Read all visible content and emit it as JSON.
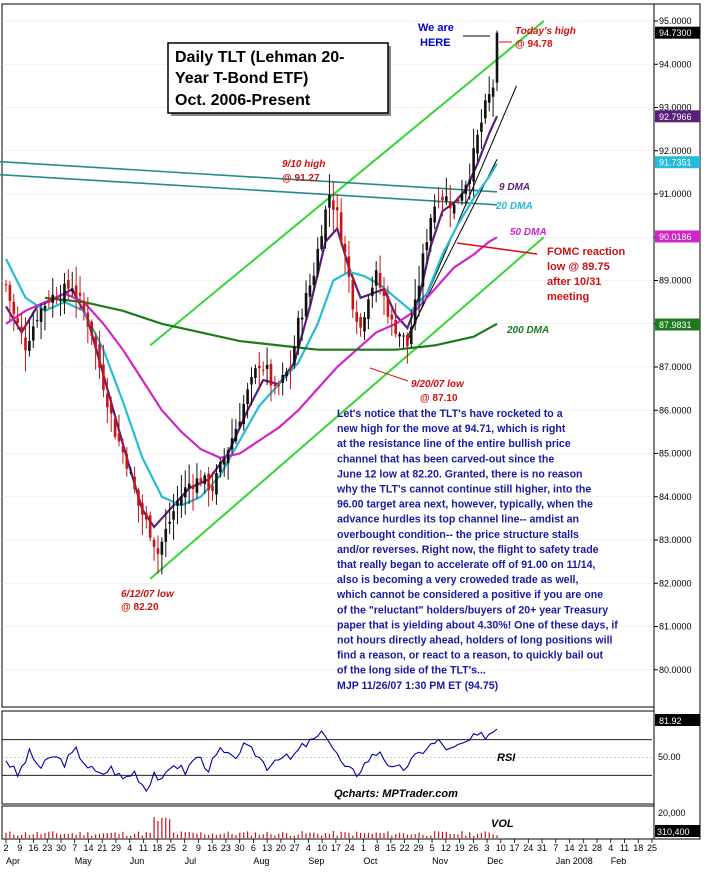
{
  "chart_data": {
    "type": "candlestick",
    "title_lines": [
      "Daily TLT (Lehman 20-",
      "Year T-Bond ETF)",
      "Oct. 2006-Present"
    ],
    "ylim": [
      79.5,
      95.1
    ],
    "y_ticks": [
      "95.0000",
      "94.0000",
      "93.0000",
      "92.0000",
      "91.0000",
      "90.0000",
      "89.0000",
      "88.0000",
      "87.0000",
      "86.0000",
      "85.0000",
      "84.0000",
      "83.0000",
      "82.0000",
      "81.0000",
      "80.0000"
    ],
    "price_tags": [
      {
        "label": "94.7300",
        "value": 94.73,
        "color": "#000000"
      },
      {
        "label": "92.7966",
        "value": 92.7966,
        "color": "#5a1f7a"
      },
      {
        "label": "91.7351",
        "value": 91.7351,
        "color": "#26bcd8"
      },
      {
        "label": "90.0186",
        "value": 90.0186,
        "color": "#d026c8"
      },
      {
        "label": "87.9831",
        "value": 87.9831,
        "color": "#1e7a1e"
      }
    ],
    "x_day_labels": [
      "2",
      "9",
      "16",
      "23",
      "30",
      "7",
      "14",
      "21",
      "29",
      "4",
      "11",
      "18",
      "25",
      "2",
      "9",
      "16",
      "23",
      "30",
      "6",
      "13",
      "20",
      "27",
      "4",
      "10",
      "17",
      "24",
      "1",
      "8",
      "15",
      "22",
      "29",
      "5",
      "12",
      "19",
      "26",
      "3",
      "10",
      "17",
      "24",
      "31",
      "7",
      "14",
      "21",
      "28",
      "4",
      "11",
      "18",
      "25"
    ],
    "x_month_labels": [
      "Apr",
      "May",
      "Jun",
      "Jul",
      "Aug",
      "Sep",
      "Oct",
      "Nov",
      "Dec",
      "Jan 2008",
      "Feb"
    ],
    "ohlc_anchors": [
      {
        "t": 0,
        "v": 88.9
      },
      {
        "t": 2,
        "v": 88.2
      },
      {
        "t": 5,
        "v": 87.5
      },
      {
        "t": 8,
        "v": 88.2
      },
      {
        "t": 11,
        "v": 88.6
      },
      {
        "t": 14,
        "v": 88.7
      },
      {
        "t": 17,
        "v": 88.9
      },
      {
        "t": 19,
        "v": 88.5
      },
      {
        "t": 22,
        "v": 87.8
      },
      {
        "t": 25,
        "v": 86.6
      },
      {
        "t": 28,
        "v": 85.5
      },
      {
        "t": 31,
        "v": 84.8
      },
      {
        "t": 34,
        "v": 83.8
      },
      {
        "t": 37,
        "v": 83.2
      },
      {
        "t": 39,
        "v": 82.7
      },
      {
        "t": 41,
        "v": 83.2
      },
      {
        "t": 44,
        "v": 83.9
      },
      {
        "t": 47,
        "v": 84.3
      },
      {
        "t": 50,
        "v": 84.4
      },
      {
        "t": 53,
        "v": 84.2
      },
      {
        "t": 56,
        "v": 84.9
      },
      {
        "t": 59,
        "v": 85.6
      },
      {
        "t": 62,
        "v": 86.4
      },
      {
        "t": 65,
        "v": 87.1
      },
      {
        "t": 67,
        "v": 86.9
      },
      {
        "t": 69,
        "v": 86.4
      },
      {
        "t": 71,
        "v": 86.7
      },
      {
        "t": 73,
        "v": 87.0
      },
      {
        "t": 75,
        "v": 88.0
      },
      {
        "t": 77,
        "v": 88.6
      },
      {
        "t": 79,
        "v": 89.2
      },
      {
        "t": 81,
        "v": 90.2
      },
      {
        "t": 83,
        "v": 91.0
      },
      {
        "t": 85,
        "v": 90.5
      },
      {
        "t": 87,
        "v": 89.6
      },
      {
        "t": 89,
        "v": 88.5
      },
      {
        "t": 91,
        "v": 87.9
      },
      {
        "t": 93,
        "v": 88.7
      },
      {
        "t": 95,
        "v": 89.1
      },
      {
        "t": 97,
        "v": 88.6
      },
      {
        "t": 99,
        "v": 88.0
      },
      {
        "t": 101,
        "v": 87.8
      },
      {
        "t": 103,
        "v": 87.5
      },
      {
        "t": 105,
        "v": 88.4
      },
      {
        "t": 107,
        "v": 89.5
      },
      {
        "t": 109,
        "v": 90.5
      },
      {
        "t": 111,
        "v": 91.0
      },
      {
        "t": 113,
        "v": 90.9
      },
      {
        "t": 115,
        "v": 90.7
      },
      {
        "t": 117,
        "v": 91.1
      },
      {
        "t": 119,
        "v": 91.5
      },
      {
        "t": 121,
        "v": 92.3
      },
      {
        "t": 123,
        "v": 93.0
      },
      {
        "t": 125,
        "v": 93.5
      },
      {
        "t": 126,
        "v": 94.73
      }
    ],
    "moving_averages": [
      {
        "name": "9 DMA",
        "color": "#5a1f7a",
        "points": [
          [
            0,
            88.4
          ],
          [
            4,
            87.8
          ],
          [
            8,
            88.4
          ],
          [
            13,
            88.6
          ],
          [
            17,
            88.8
          ],
          [
            21,
            88.1
          ],
          [
            26,
            86.5
          ],
          [
            31,
            84.9
          ],
          [
            35,
            83.7
          ],
          [
            38,
            83.3
          ],
          [
            42,
            83.7
          ],
          [
            47,
            84.2
          ],
          [
            52,
            84.4
          ],
          [
            57,
            85.0
          ],
          [
            62,
            86.0
          ],
          [
            66,
            86.7
          ],
          [
            70,
            86.6
          ],
          [
            74,
            87.1
          ],
          [
            78,
            88.4
          ],
          [
            82,
            89.9
          ],
          [
            85,
            90.2
          ],
          [
            88,
            89.3
          ],
          [
            91,
            88.6
          ],
          [
            94,
            88.7
          ],
          [
            97,
            88.8
          ],
          [
            100,
            88.2
          ],
          [
            103,
            87.9
          ],
          [
            106,
            88.6
          ],
          [
            109,
            89.8
          ],
          [
            112,
            90.6
          ],
          [
            115,
            90.8
          ],
          [
            118,
            91.1
          ],
          [
            121,
            91.7
          ],
          [
            124,
            92.4
          ],
          [
            126,
            92.8
          ]
        ]
      },
      {
        "name": "20 DMA",
        "color": "#26bcd8",
        "points": [
          [
            0,
            89.5
          ],
          [
            5,
            88.6
          ],
          [
            10,
            88.3
          ],
          [
            15,
            88.5
          ],
          [
            20,
            88.3
          ],
          [
            25,
            87.4
          ],
          [
            30,
            86.2
          ],
          [
            35,
            84.9
          ],
          [
            40,
            84.0
          ],
          [
            45,
            83.8
          ],
          [
            50,
            84.0
          ],
          [
            55,
            84.5
          ],
          [
            60,
            85.3
          ],
          [
            65,
            86.1
          ],
          [
            70,
            86.6
          ],
          [
            75,
            87.1
          ],
          [
            80,
            88.0
          ],
          [
            84,
            89.0
          ],
          [
            88,
            89.2
          ],
          [
            92,
            89.1
          ],
          [
            96,
            88.9
          ],
          [
            100,
            88.6
          ],
          [
            104,
            88.3
          ],
          [
            108,
            88.7
          ],
          [
            112,
            89.6
          ],
          [
            116,
            90.3
          ],
          [
            120,
            90.9
          ],
          [
            124,
            91.4
          ],
          [
            126,
            91.7
          ]
        ]
      },
      {
        "name": "50 DMA",
        "color": "#d026c8",
        "points": [
          [
            0,
            88.0
          ],
          [
            5,
            88.3
          ],
          [
            10,
            88.5
          ],
          [
            15,
            88.7
          ],
          [
            20,
            88.5
          ],
          [
            25,
            88.0
          ],
          [
            30,
            87.4
          ],
          [
            35,
            86.7
          ],
          [
            40,
            86.0
          ],
          [
            45,
            85.5
          ],
          [
            50,
            85.1
          ],
          [
            55,
            84.9
          ],
          [
            60,
            85.0
          ],
          [
            65,
            85.3
          ],
          [
            70,
            85.6
          ],
          [
            75,
            86.0
          ],
          [
            80,
            86.5
          ],
          [
            85,
            87.0
          ],
          [
            90,
            87.4
          ],
          [
            95,
            87.8
          ],
          [
            100,
            88.0
          ],
          [
            105,
            88.3
          ],
          [
            110,
            88.8
          ],
          [
            115,
            89.3
          ],
          [
            120,
            89.6
          ],
          [
            124,
            89.9
          ],
          [
            126,
            90.0
          ]
        ]
      },
      {
        "name": "200 DMA",
        "color": "#1e7a1e",
        "points": [
          [
            10,
            88.6
          ],
          [
            20,
            88.5
          ],
          [
            30,
            88.3
          ],
          [
            40,
            88.0
          ],
          [
            50,
            87.8
          ],
          [
            60,
            87.6
          ],
          [
            70,
            87.5
          ],
          [
            80,
            87.4
          ],
          [
            90,
            87.4
          ],
          [
            100,
            87.4
          ],
          [
            110,
            87.5
          ],
          [
            120,
            87.7
          ],
          [
            126,
            88.0
          ]
        ]
      }
    ],
    "annotations": [
      {
        "text": [
          "We are",
          "HERE"
        ],
        "color": "#0000cc"
      },
      {
        "text": [
          "Today's high",
          "@ 94.78"
        ],
        "color": "#d01010"
      },
      {
        "text": [
          "9/10 high",
          "@ 91.27"
        ],
        "color": "#d01010"
      },
      {
        "text": [
          "9 DMA"
        ],
        "color": "#5a1f7a"
      },
      {
        "text": [
          "20 DMA"
        ],
        "color": "#26bcd8"
      },
      {
        "text": [
          "50 DMA"
        ],
        "color": "#d026c8"
      },
      {
        "text": [
          "FOMC reaction",
          "low @ 89.75",
          "after 10/31",
          "meeting"
        ],
        "color": "#d01010"
      },
      {
        "text": [
          "200 DMA"
        ],
        "color": "#1e7a1e"
      },
      {
        "text": [
          "9/20/07 low",
          "@ 87.10"
        ],
        "color": "#d01010"
      },
      {
        "text": [
          "6/12/07 low",
          "@ 82.20"
        ],
        "color": "#d01010"
      }
    ],
    "commentary": [
      "Let's notice that the TLT's have rocketed to a",
      "new high for the move at 94.71, which is right",
      "at the resistance line of the entire bullish price",
      "channel that has been carved-out since the",
      "June 12 low at 82.20. Granted, there is no reason",
      "why the TLT's cannot continue still higher, into the",
      "96.00 target area next, however, typically, when the",
      "advance hurdles its top channel line-- amdist an",
      "overbought condition-- the price structure stalls",
      "and/or reverses. Right now, the flight to safety trade",
      "that really began to accelerate off of 91.00 on 11/14,",
      "also is becoming a very croweded trade as well,",
      "which cannot be considered a positive if you are one",
      "of the \"reluctant\" holders/buyers of 20+ year Treasury",
      "paper that is yielding about 4.30%! One of these days, if",
      "not hours directly ahead, holders of long positions will",
      "find a reason, or react to a reason, to quickly bail out",
      "of the long side of the TLT's...",
      "MJP 11/26/07 1:30 PM ET  (94.75)"
    ],
    "rsi_panel": {
      "label": "RSI",
      "credit": "Qcharts: MPTrader.com",
      "ticks": [
        "50.00"
      ],
      "current_tag": "81.92",
      "ylim": [
        0,
        100
      ],
      "levels": [
        70,
        30
      ],
      "anchors": [
        [
          0,
          48
        ],
        [
          3,
          30
        ],
        [
          6,
          55
        ],
        [
          9,
          38
        ],
        [
          12,
          52
        ],
        [
          15,
          44
        ],
        [
          18,
          58
        ],
        [
          21,
          40
        ],
        [
          24,
          30
        ],
        [
          27,
          38
        ],
        [
          30,
          26
        ],
        [
          33,
          34
        ],
        [
          36,
          14
        ],
        [
          38,
          34
        ],
        [
          40,
          22
        ],
        [
          43,
          44
        ],
        [
          46,
          34
        ],
        [
          49,
          52
        ],
        [
          52,
          38
        ],
        [
          55,
          58
        ],
        [
          58,
          48
        ],
        [
          61,
          62
        ],
        [
          64,
          55
        ],
        [
          67,
          40
        ],
        [
          70,
          52
        ],
        [
          73,
          48
        ],
        [
          76,
          62
        ],
        [
          79,
          70
        ],
        [
          82,
          78
        ],
        [
          84,
          60
        ],
        [
          87,
          38
        ],
        [
          90,
          32
        ],
        [
          93,
          48
        ],
        [
          96,
          58
        ],
        [
          99,
          36
        ],
        [
          102,
          38
        ],
        [
          105,
          50
        ],
        [
          108,
          62
        ],
        [
          111,
          68
        ],
        [
          114,
          58
        ],
        [
          117,
          64
        ],
        [
          120,
          72
        ],
        [
          123,
          75
        ],
        [
          126,
          81.92
        ]
      ]
    },
    "vol_panel": {
      "label": "VOL",
      "ticks": [
        "20,000"
      ],
      "current_tag": "310,400",
      "volume_spike_index": 40
    }
  }
}
